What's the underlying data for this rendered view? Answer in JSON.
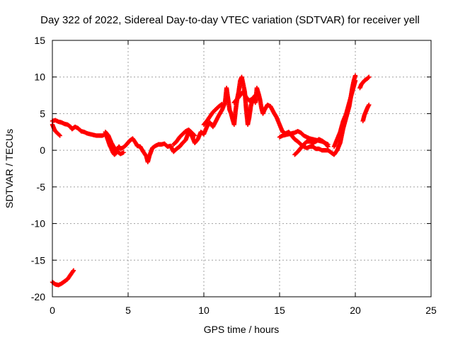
{
  "chart_data": {
    "type": "scatter",
    "title": "Day 322 of 2022, Sidereal Day-to-day VTEC variation (SDTVAR) for receiver yell",
    "xlabel": "GPS time / hours",
    "ylabel": "SDTVAR / TECUs",
    "xlim": [
      0,
      25
    ],
    "ylim": [
      -20,
      15
    ],
    "xticks": [
      0,
      5,
      10,
      15,
      20,
      25
    ],
    "yticks": [
      -20,
      -15,
      -10,
      -5,
      0,
      5,
      10,
      15
    ],
    "grid": true,
    "marker": "plus",
    "color": "#ff0000",
    "series": [
      {
        "name": "SDTVAR",
        "segments": [
          [
            [
              0.0,
              -18.0
            ],
            [
              0.2,
              -18.3
            ],
            [
              0.4,
              -18.4
            ],
            [
              0.6,
              -18.2
            ],
            [
              0.8,
              -17.9
            ],
            [
              1.0,
              -17.6
            ],
            [
              1.2,
              -17.0
            ],
            [
              1.4,
              -16.4
            ]
          ],
          [
            [
              0.0,
              3.5
            ],
            [
              0.1,
              3.0
            ],
            [
              0.2,
              2.6
            ],
            [
              0.3,
              2.4
            ],
            [
              0.4,
              2.2
            ],
            [
              0.5,
              2.0
            ]
          ],
          [
            [
              0.0,
              4.0
            ],
            [
              0.2,
              4.1
            ],
            [
              0.4,
              3.9
            ],
            [
              0.6,
              3.8
            ],
            [
              0.8,
              3.6
            ],
            [
              1.0,
              3.5
            ],
            [
              1.2,
              3.2
            ],
            [
              1.3,
              2.9
            ],
            [
              1.5,
              3.2
            ],
            [
              1.7,
              3.0
            ],
            [
              1.9,
              2.6
            ],
            [
              2.1,
              2.5
            ],
            [
              2.3,
              2.3
            ],
            [
              2.5,
              2.2
            ],
            [
              2.7,
              2.1
            ],
            [
              2.9,
              2.0
            ],
            [
              3.1,
              2.0
            ],
            [
              3.3,
              2.0
            ],
            [
              3.5,
              2.2
            ],
            [
              3.6,
              1.8
            ],
            [
              3.7,
              1.2
            ],
            [
              3.8,
              0.6
            ],
            [
              3.9,
              0.2
            ],
            [
              4.0,
              -0.3
            ],
            [
              4.1,
              -0.6
            ],
            [
              4.2,
              -0.4
            ],
            [
              4.3,
              0.2
            ],
            [
              4.4,
              0.5
            ],
            [
              4.5,
              0.2
            ],
            [
              4.7,
              0.4
            ],
            [
              4.9,
              0.8
            ],
            [
              5.1,
              1.3
            ],
            [
              5.3,
              1.6
            ],
            [
              5.5,
              1.0
            ],
            [
              5.6,
              0.6
            ],
            [
              5.8,
              0.5
            ],
            [
              6.0,
              -0.2
            ],
            [
              6.2,
              -0.8
            ],
            [
              6.3,
              -1.6
            ],
            [
              6.4,
              -0.8
            ],
            [
              6.6,
              0.3
            ],
            [
              6.8,
              0.6
            ],
            [
              7.0,
              0.8
            ],
            [
              7.2,
              0.8
            ],
            [
              7.4,
              0.9
            ],
            [
              7.6,
              0.5
            ],
            [
              7.8,
              0.6
            ],
            [
              8.0,
              -0.2
            ],
            [
              8.2,
              0.2
            ],
            [
              8.4,
              0.5
            ],
            [
              8.6,
              1.0
            ],
            [
              8.8,
              1.4
            ],
            [
              9.0,
              2.5
            ],
            [
              9.2,
              2.0
            ],
            [
              9.4,
              1.0
            ],
            [
              9.6,
              1.5
            ],
            [
              9.8,
              2.5
            ],
            [
              10.0,
              2.2
            ],
            [
              10.2,
              3.2
            ],
            [
              10.4,
              3.8
            ],
            [
              10.6,
              3.2
            ],
            [
              10.8,
              4.0
            ],
            [
              11.0,
              4.8
            ],
            [
              11.2,
              5.5
            ],
            [
              11.4,
              6.5
            ],
            [
              11.5,
              8.5
            ],
            [
              11.6,
              7.0
            ],
            [
              11.7,
              5.5
            ],
            [
              11.8,
              5.0
            ],
            [
              11.9,
              4.2
            ],
            [
              12.0,
              3.5
            ],
            [
              12.1,
              5.5
            ],
            [
              12.2,
              7.0
            ],
            [
              12.3,
              8.0
            ],
            [
              12.4,
              9.5
            ],
            [
              12.5,
              10.0
            ],
            [
              12.6,
              9.0
            ],
            [
              12.7,
              8.0
            ],
            [
              12.8,
              5.5
            ],
            [
              12.9,
              3.5
            ],
            [
              13.0,
              4.5
            ],
            [
              13.1,
              6.0
            ],
            [
              13.2,
              6.8
            ],
            [
              13.3,
              7.2
            ],
            [
              13.4,
              6.5
            ],
            [
              13.5,
              8.5
            ],
            [
              13.6,
              7.8
            ],
            [
              13.7,
              7.0
            ],
            [
              13.8,
              5.8
            ],
            [
              13.9,
              5.0
            ],
            [
              14.0,
              5.5
            ],
            [
              14.2,
              6.2
            ],
            [
              14.4,
              6.0
            ],
            [
              14.6,
              5.2
            ],
            [
              14.8,
              4.5
            ],
            [
              15.0,
              3.5
            ],
            [
              15.2,
              2.5
            ],
            [
              15.4,
              2.3
            ],
            [
              15.6,
              2.5
            ],
            [
              15.8,
              2.0
            ],
            [
              16.0,
              1.5
            ],
            [
              16.2,
              1.2
            ],
            [
              16.4,
              0.8
            ],
            [
              16.6,
              0.5
            ],
            [
              16.8,
              0.3
            ],
            [
              17.0,
              0.5
            ],
            [
              17.2,
              0.5
            ],
            [
              17.4,
              0.2
            ],
            [
              17.6,
              0.2
            ],
            [
              17.8,
              0.0
            ],
            [
              18.0,
              0.0
            ],
            [
              18.2,
              0.0
            ],
            [
              18.4,
              -0.3
            ],
            [
              18.6,
              -0.6
            ],
            [
              18.8,
              0.0
            ],
            [
              19.0,
              1.0
            ],
            [
              19.2,
              3.0
            ],
            [
              19.4,
              4.5
            ],
            [
              19.6,
              6.0
            ],
            [
              19.8,
              8.5
            ],
            [
              19.9,
              9.5
            ],
            [
              20.0,
              10.2
            ]
          ],
          [
            [
              3.5,
              2.5
            ],
            [
              3.7,
              2.0
            ],
            [
              3.9,
              1.0
            ],
            [
              4.1,
              0.3
            ],
            [
              4.3,
              -0.2
            ],
            [
              4.5,
              -0.5
            ],
            [
              4.7,
              -0.3
            ]
          ],
          [
            [
              8.0,
              0.8
            ],
            [
              8.2,
              1.2
            ],
            [
              8.4,
              1.8
            ],
            [
              8.6,
              2.2
            ],
            [
              8.8,
              2.6
            ],
            [
              9.0,
              2.8
            ],
            [
              9.2,
              2.4
            ],
            [
              9.4,
              2.0
            ]
          ],
          [
            [
              10.0,
              3.5
            ],
            [
              10.2,
              4.0
            ],
            [
              10.4,
              4.6
            ],
            [
              10.6,
              5.2
            ],
            [
              10.8,
              5.6
            ],
            [
              11.0,
              6.0
            ],
            [
              11.2,
              6.3
            ]
          ],
          [
            [
              12.0,
              6.5
            ],
            [
              12.2,
              7.0
            ],
            [
              12.4,
              7.5
            ],
            [
              12.6,
              8.0
            ],
            [
              12.8,
              7.2
            ],
            [
              13.0,
              6.8
            ],
            [
              13.2,
              7.0
            ],
            [
              13.4,
              7.5
            ]
          ],
          [
            [
              15.0,
              1.8
            ],
            [
              15.2,
              2.0
            ],
            [
              15.4,
              2.1
            ],
            [
              15.6,
              2.2
            ],
            [
              15.8,
              2.3
            ],
            [
              16.0,
              2.4
            ],
            [
              16.2,
              2.6
            ],
            [
              16.4,
              2.4
            ],
            [
              16.6,
              2.0
            ],
            [
              16.8,
              1.8
            ],
            [
              17.0,
              1.6
            ],
            [
              17.2,
              1.5
            ],
            [
              17.4,
              1.4
            ],
            [
              17.6,
              1.3
            ],
            [
              17.8,
              1.2
            ],
            [
              18.0,
              1.0
            ],
            [
              18.2,
              0.8
            ]
          ],
          [
            [
              16.0,
              -0.6
            ],
            [
              16.2,
              -0.2
            ],
            [
              16.4,
              0.3
            ],
            [
              16.6,
              0.8
            ],
            [
              16.8,
              1.2
            ],
            [
              17.0,
              1.2
            ],
            [
              17.2,
              1.0
            ],
            [
              17.4,
              1.2
            ],
            [
              17.6,
              1.5
            ],
            [
              17.8,
              1.3
            ],
            [
              18.0,
              1.0
            ],
            [
              18.2,
              0.5
            ]
          ],
          [
            [
              18.6,
              0.5
            ],
            [
              18.8,
              1.5
            ],
            [
              19.0,
              2.5
            ],
            [
              19.2,
              4.0
            ],
            [
              19.4,
              5.0
            ],
            [
              19.6,
              6.5
            ],
            [
              19.8,
              8.0
            ],
            [
              20.0,
              9.5
            ]
          ],
          [
            [
              20.3,
              8.5
            ],
            [
              20.4,
              9.0
            ],
            [
              20.6,
              9.5
            ],
            [
              20.8,
              9.8
            ],
            [
              20.9,
              10.0
            ]
          ],
          [
            [
              20.5,
              4.0
            ],
            [
              20.6,
              4.8
            ],
            [
              20.7,
              5.3
            ],
            [
              20.8,
              5.8
            ],
            [
              20.9,
              6.2
            ]
          ]
        ]
      }
    ]
  }
}
